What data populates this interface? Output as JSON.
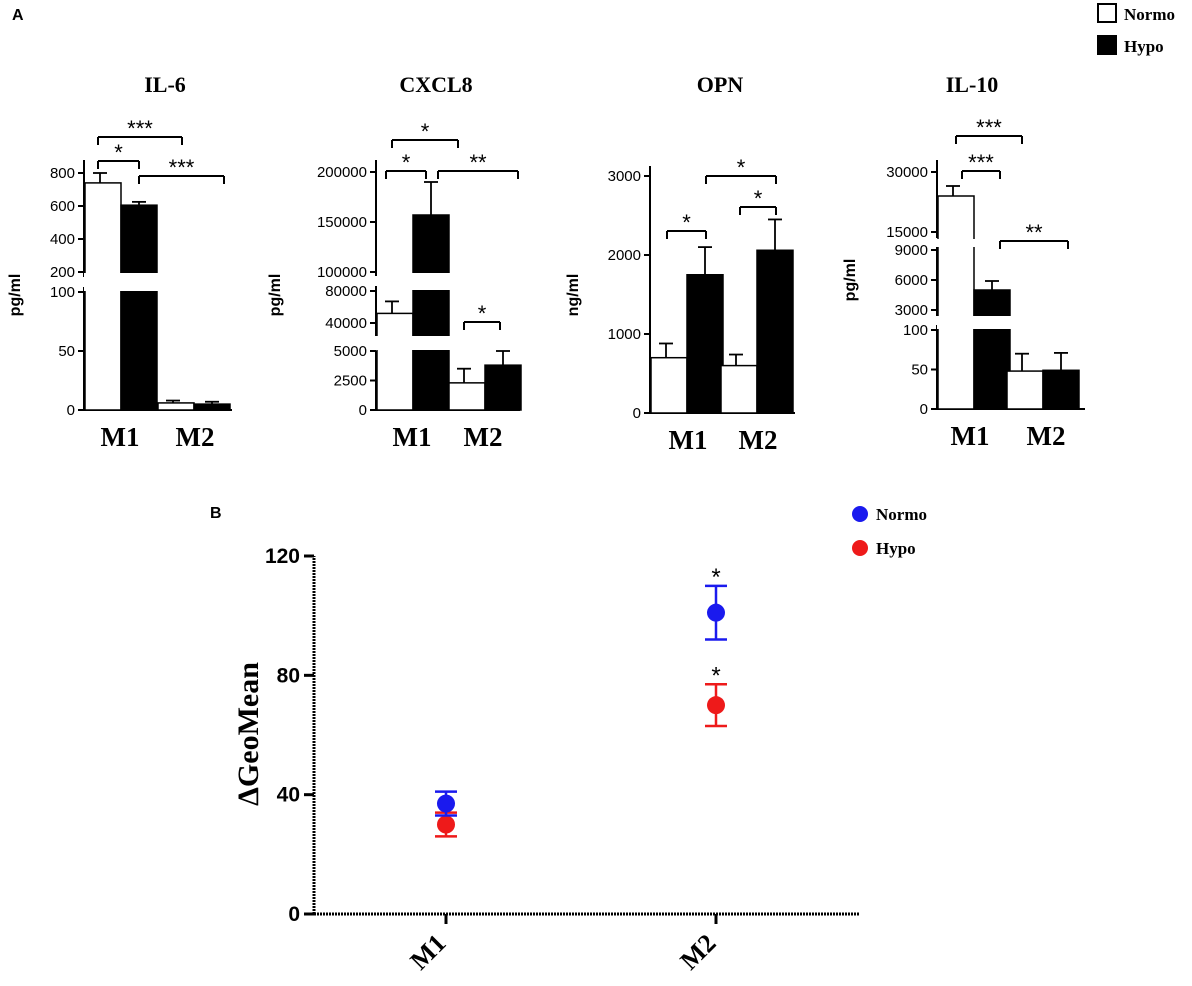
{
  "panel_a_label": "A",
  "panel_b_label": "B",
  "legend_a": [
    {
      "label": "Normo",
      "fill": "#ffffff"
    },
    {
      "label": "Hypo",
      "fill": "#000000"
    }
  ],
  "legend_b": [
    {
      "label": "Normo",
      "color": "#1a1aee"
    },
    {
      "label": "Hypo",
      "color": "#ee1a1a"
    }
  ],
  "chart_data": [
    {
      "type": "bar",
      "title": "IL-6",
      "ylabel": "pg/ml",
      "categories": [
        "M1",
        "M2"
      ],
      "series": [
        {
          "name": "Normo",
          "values": [
            740,
            6
          ],
          "errors": [
            60,
            2
          ]
        },
        {
          "name": "Hypo",
          "values": [
            605,
            5
          ],
          "errors": [
            20,
            2
          ]
        }
      ],
      "broken_axis": {
        "lower": [
          0,
          100
        ],
        "upper": [
          200,
          800
        ]
      },
      "lower_ticks": [
        "0",
        "50",
        "100"
      ],
      "upper_ticks": [
        "200",
        "400",
        "600",
        "800"
      ],
      "significance": [
        {
          "from": "M1 Normo",
          "to": "M1 Hypo",
          "label": "*"
        },
        {
          "from": "M1 Normo",
          "to": "M2 Normo",
          "label": "***"
        },
        {
          "from": "M1 Hypo",
          "to": "M2 Hypo",
          "label": "***"
        }
      ]
    },
    {
      "type": "bar",
      "title": "CXCL8",
      "ylabel": "pg/ml",
      "categories": [
        "M1",
        "M2"
      ],
      "series": [
        {
          "name": "Normo",
          "values": [
            52000,
            2300
          ],
          "errors": [
            15000,
            1200
          ]
        },
        {
          "name": "Hypo",
          "values": [
            157000,
            3800
          ],
          "errors": [
            33000,
            1200
          ]
        }
      ],
      "broken_axis": {
        "lower": [
          0,
          5000
        ],
        "middle": [
          5000,
          80000
        ],
        "upper": [
          100000,
          200000
        ]
      },
      "lower_ticks": [
        "0",
        "2500",
        "5000"
      ],
      "middle_ticks": [
        "40000",
        "80000"
      ],
      "upper_ticks": [
        "100000",
        "150000",
        "200000"
      ],
      "significance": [
        {
          "from": "M1 Normo",
          "to": "M1 Hypo",
          "label": "*"
        },
        {
          "from": "M1 Normo",
          "to": "M2 Normo",
          "label": "*"
        },
        {
          "from": "M1 Hypo",
          "to": "M2 Hypo",
          "label": "**"
        },
        {
          "from": "M2 Normo",
          "to": "M2 Hypo",
          "label": "*"
        }
      ]
    },
    {
      "type": "bar",
      "title": "OPN",
      "ylabel": "ng/ml",
      "categories": [
        "M1",
        "M2"
      ],
      "series": [
        {
          "name": "Normo",
          "values": [
            700,
            600
          ],
          "errors": [
            180,
            140
          ]
        },
        {
          "name": "Hypo",
          "values": [
            1750,
            2060
          ],
          "errors": [
            350,
            390
          ]
        }
      ],
      "ylim": [
        0,
        3000
      ],
      "ticks": [
        "0",
        "1000",
        "2000",
        "3000"
      ],
      "significance": [
        {
          "from": "M1 Normo",
          "to": "M1 Hypo",
          "label": "*"
        },
        {
          "from": "M1 Hypo",
          "to": "M2 Hypo",
          "label": "*"
        },
        {
          "from": "M2 Normo",
          "to": "M2 Hypo",
          "label": "*"
        }
      ]
    },
    {
      "type": "bar",
      "title": "IL-10",
      "ylabel": "pg/ml",
      "categories": [
        "M1",
        "M2"
      ],
      "series": [
        {
          "name": "Normo",
          "values": [
            24000,
            48
          ],
          "errors": [
            2500,
            22
          ]
        },
        {
          "name": "Hypo",
          "values": [
            5000,
            49
          ],
          "errors": [
            900,
            22
          ]
        }
      ],
      "broken_axis": {
        "lower": [
          0,
          100
        ],
        "middle": [
          3000,
          9000
        ],
        "upper": [
          15000,
          30000
        ]
      },
      "lower_ticks": [
        "0",
        "50",
        "100"
      ],
      "middle_ticks": [
        "3000",
        "6000",
        "9000"
      ],
      "upper_ticks": [
        "15000",
        "30000"
      ],
      "significance": [
        {
          "from": "M1 Normo",
          "to": "M1 Hypo",
          "label": "***"
        },
        {
          "from": "M1 Normo",
          "to": "M2 Normo",
          "label": "***"
        },
        {
          "from": "M1 Hypo",
          "to": "M2 Hypo",
          "label": "**"
        }
      ]
    },
    {
      "type": "scatter",
      "ylabel": "ΔGeoMean",
      "categories": [
        "M1",
        "M2"
      ],
      "ylim": [
        0,
        120
      ],
      "ticks": [
        "0",
        "40",
        "80",
        "120"
      ],
      "series": [
        {
          "name": "Normo",
          "values": [
            37,
            101
          ],
          "errors": [
            4,
            9
          ]
        },
        {
          "name": "Hypo",
          "values": [
            30,
            70
          ],
          "errors": [
            4,
            7
          ]
        }
      ],
      "annotations": [
        {
          "category": "M2",
          "series": "Normo",
          "label": "*"
        },
        {
          "category": "M2",
          "series": "Hypo",
          "label": "*"
        }
      ]
    }
  ]
}
